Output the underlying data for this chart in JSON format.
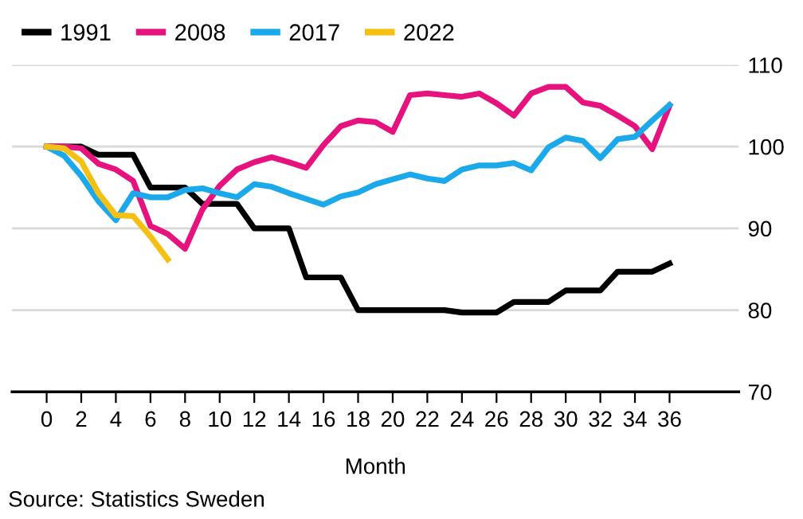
{
  "chart_data": {
    "type": "line",
    "xlabel": "Month",
    "annotations": [
      "Source: Statistics Sweden"
    ],
    "x": [
      0,
      1,
      2,
      3,
      4,
      5,
      6,
      7,
      8,
      9,
      10,
      11,
      12,
      13,
      14,
      15,
      16,
      17,
      18,
      19,
      20,
      21,
      22,
      23,
      24,
      25,
      26,
      27,
      28,
      29,
      30,
      31,
      32,
      33,
      34,
      35,
      36
    ],
    "series": [
      {
        "name": "1991",
        "color": "#000000",
        "values": [
          100,
          100,
          100,
          99,
          99,
          99,
          95,
          95,
          95,
          93,
          93,
          93,
          90,
          90,
          90,
          84,
          84,
          84,
          80,
          80,
          80,
          80,
          80,
          80,
          79.7,
          79.7,
          79.7,
          81,
          81,
          81,
          82.4,
          82.4,
          82.4,
          84.7,
          84.7,
          84.7,
          85.7
        ]
      },
      {
        "name": "2008",
        "color": "#e6137f",
        "values": [
          100,
          100,
          99.8,
          97.9,
          97.2,
          95.8,
          90.3,
          89.3,
          87.5,
          92.3,
          95.2,
          97.2,
          98.1,
          98.7,
          98.1,
          97.4,
          100.2,
          102.5,
          103.2,
          103,
          101.8,
          106.3,
          106.5,
          106.3,
          106.1,
          106.5,
          105.3,
          103.8,
          106.5,
          107.3,
          107.3,
          105.4,
          105,
          103.8,
          102.5,
          99.7,
          105
        ]
      },
      {
        "name": "2017",
        "color": "#1ba9eb",
        "values": [
          100,
          98.9,
          96.4,
          93.3,
          91,
          94.3,
          93.8,
          93.8,
          94.7,
          94.9,
          94.3,
          93.8,
          95.4,
          95.1,
          94.3,
          93.6,
          92.9,
          93.9,
          94.4,
          95.4,
          96,
          96.6,
          96.1,
          95.8,
          97.2,
          97.7,
          97.7,
          98,
          97.1,
          99.9,
          101.1,
          100.7,
          98.6,
          100.9,
          101.2,
          103.2,
          105.1
        ]
      },
      {
        "name": "2022",
        "color": "#f5c014",
        "values": [
          100,
          99.8,
          98.2,
          94.3,
          91.6,
          91.5,
          89,
          86.2,
          null,
          null,
          null,
          null,
          null,
          null,
          null,
          null,
          null,
          null,
          null,
          null,
          null,
          null,
          null,
          null,
          null,
          null,
          null,
          null,
          null,
          null,
          null,
          null,
          null,
          null,
          null,
          null,
          null
        ]
      }
    ],
    "xlim": [
      -2,
      40
    ],
    "xticks": [
      0,
      2,
      4,
      6,
      8,
      10,
      12,
      14,
      16,
      18,
      20,
      22,
      24,
      26,
      28,
      30,
      32,
      34,
      36
    ],
    "ylim": [
      70,
      110
    ],
    "yticks": [
      70,
      80,
      90,
      100,
      110
    ],
    "grid": "y",
    "legend": "top left",
    "marker": "none",
    "line_style": "solid"
  }
}
